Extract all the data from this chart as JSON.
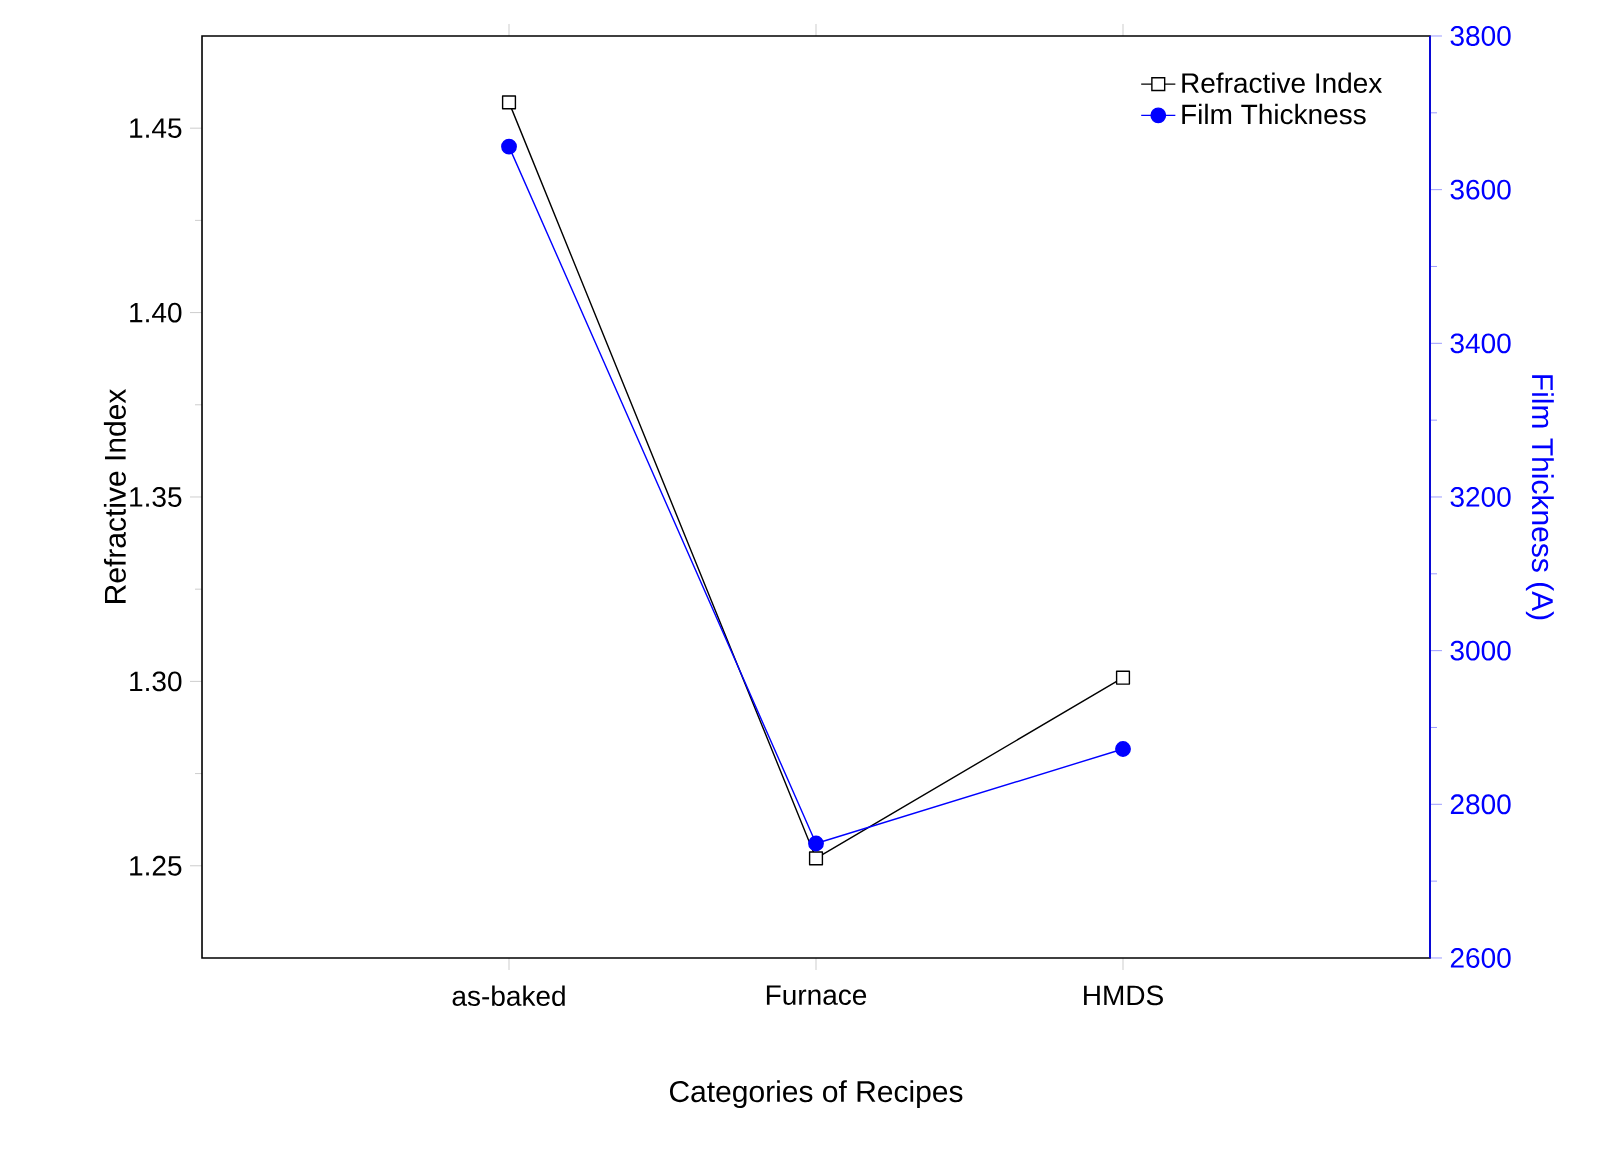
{
  "chart_data": {
    "type": "line",
    "xlabel": "Categories of Recipes",
    "ylabel": "Refractive Index",
    "y2label": "Film Thickness (A)",
    "categories": [
      "as-baked",
      "Furnace",
      "HMDS"
    ],
    "ylim": [
      1.225,
      1.475
    ],
    "yticks": [
      1.25,
      {
        "value": 1.3,
        "label": "1.30"
      },
      1.35,
      {
        "value": 1.4,
        "label": "1.40"
      },
      1.45
    ],
    "y2lim": [
      2600,
      3800
    ],
    "y2ticks": [
      2600,
      2800,
      3000,
      3200,
      3400,
      3600,
      3800
    ],
    "legend": "top right",
    "series": [
      {
        "name": "Refractive Index",
        "color": "#000000",
        "marker": "square",
        "values": [
          1.457,
          1.252,
          1.301
        ]
      },
      {
        "name": "Film Thickness",
        "color": "#0000ff",
        "marker": "circle",
        "axis": "y2",
        "values": [
          3656,
          2749,
          2872
        ]
      }
    ]
  }
}
